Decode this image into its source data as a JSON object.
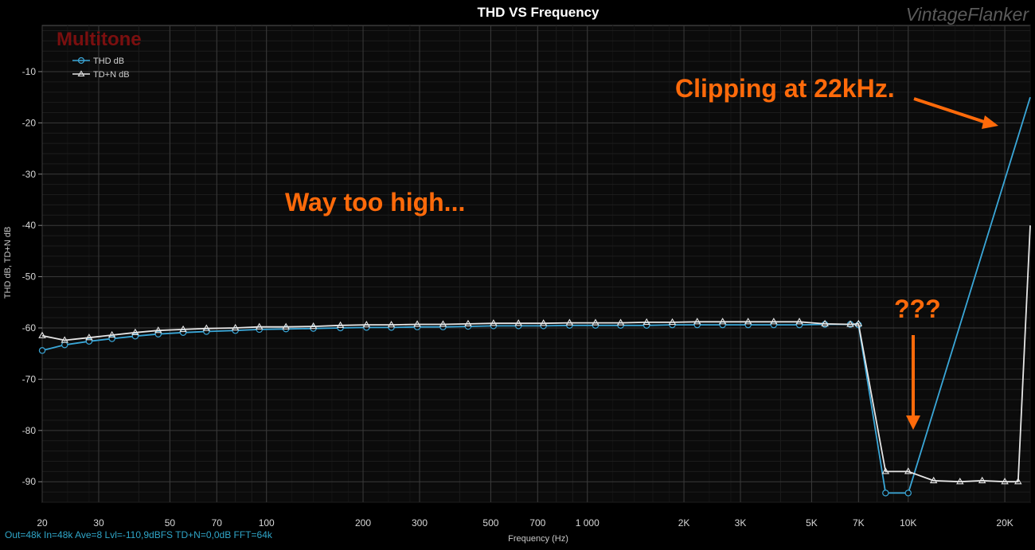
{
  "header": {
    "title": "THD VS Frequency",
    "brand": "VintageFlanker",
    "watermark": "Multitone"
  },
  "status_line": "Out=48k In=48k Ave=8 Lvl=-110,9dBFS TD+N=0,0dB FFT=64k",
  "colors": {
    "thd": "#3aa7d8",
    "tdn": "#e6e6e6",
    "annotation": "#ff6a0a",
    "grid_major": "#3a3a3a",
    "grid_minor": "#1c1c1c"
  },
  "annotations": [
    {
      "text": "Clipping at 22kHz."
    },
    {
      "text": "Way too high..."
    },
    {
      "text": "???"
    }
  ],
  "chart_data": {
    "type": "line",
    "title": "THD VS Frequency",
    "xlabel": "Frequency (Hz)",
    "ylabel": "THD dB, TD+N dB",
    "xscale": "log",
    "xlim": [
      20,
      24000
    ],
    "ylim": [
      -94,
      -1
    ],
    "grid": true,
    "legend_position": "top-left",
    "x_ticks": [
      {
        "value": 20,
        "label": "20"
      },
      {
        "value": 30,
        "label": "30"
      },
      {
        "value": 50,
        "label": "50"
      },
      {
        "value": 70,
        "label": "70"
      },
      {
        "value": 100,
        "label": "100"
      },
      {
        "value": 200,
        "label": "200"
      },
      {
        "value": 300,
        "label": "300"
      },
      {
        "value": 500,
        "label": "500"
      },
      {
        "value": 700,
        "label": "700"
      },
      {
        "value": 1000,
        "label": "1 000"
      },
      {
        "value": 2000,
        "label": "2K"
      },
      {
        "value": 3000,
        "label": "3K"
      },
      {
        "value": 5000,
        "label": "5K"
      },
      {
        "value": 7000,
        "label": "7K"
      },
      {
        "value": 10000,
        "label": "10K"
      },
      {
        "value": 20000,
        "label": "20K"
      }
    ],
    "y_ticks": [
      -10,
      -20,
      -30,
      -40,
      -50,
      -60,
      -70,
      -80,
      -90
    ],
    "series": [
      {
        "name": "THD dB",
        "marker": "circle",
        "points": [
          [
            20,
            -64.4
          ],
          [
            23.5,
            -63.3
          ],
          [
            28,
            -62.6
          ],
          [
            33,
            -62.1
          ],
          [
            39,
            -61.6
          ],
          [
            46,
            -61.2
          ],
          [
            55,
            -60.9
          ],
          [
            65,
            -60.7
          ],
          [
            80,
            -60.5
          ],
          [
            95,
            -60.3
          ],
          [
            115,
            -60.2
          ],
          [
            140,
            -60.1
          ],
          [
            170,
            -60.0
          ],
          [
            205,
            -59.9
          ],
          [
            245,
            -59.9
          ],
          [
            295,
            -59.8
          ],
          [
            355,
            -59.8
          ],
          [
            425,
            -59.7
          ],
          [
            510,
            -59.6
          ],
          [
            610,
            -59.6
          ],
          [
            730,
            -59.6
          ],
          [
            880,
            -59.5
          ],
          [
            1060,
            -59.5
          ],
          [
            1270,
            -59.5
          ],
          [
            1530,
            -59.5
          ],
          [
            1840,
            -59.4
          ],
          [
            2200,
            -59.4
          ],
          [
            2640,
            -59.4
          ],
          [
            3170,
            -59.4
          ],
          [
            3810,
            -59.4
          ],
          [
            4580,
            -59.4
          ],
          [
            5500,
            -59.3
          ],
          [
            6600,
            -59.3
          ],
          [
            7000,
            -59.4
          ],
          [
            8500,
            -92.2
          ],
          [
            10000,
            -92.2
          ],
          [
            24000,
            -15.0
          ]
        ]
      },
      {
        "name": "TD+N dB",
        "marker": "triangle",
        "points": [
          [
            20,
            -61.5
          ],
          [
            23.5,
            -62.4
          ],
          [
            28,
            -61.9
          ],
          [
            33,
            -61.4
          ],
          [
            39,
            -60.9
          ],
          [
            46,
            -60.5
          ],
          [
            55,
            -60.3
          ],
          [
            65,
            -60.1
          ],
          [
            80,
            -60.0
          ],
          [
            95,
            -59.8
          ],
          [
            115,
            -59.8
          ],
          [
            140,
            -59.7
          ],
          [
            170,
            -59.5
          ],
          [
            205,
            -59.4
          ],
          [
            245,
            -59.4
          ],
          [
            295,
            -59.3
          ],
          [
            355,
            -59.3
          ],
          [
            425,
            -59.2
          ],
          [
            510,
            -59.1
          ],
          [
            610,
            -59.1
          ],
          [
            730,
            -59.1
          ],
          [
            880,
            -59.0
          ],
          [
            1060,
            -59.0
          ],
          [
            1270,
            -59.0
          ],
          [
            1530,
            -58.9
          ],
          [
            1840,
            -58.9
          ],
          [
            2200,
            -58.8
          ],
          [
            2640,
            -58.8
          ],
          [
            3170,
            -58.8
          ],
          [
            3810,
            -58.8
          ],
          [
            4580,
            -58.8
          ],
          [
            5500,
            -59.2
          ],
          [
            6600,
            -59.3
          ],
          [
            7000,
            -59.2
          ],
          [
            8500,
            -88.0
          ],
          [
            10000,
            -88.0
          ],
          [
            12000,
            -89.8
          ],
          [
            14500,
            -90.0
          ],
          [
            17000,
            -89.8
          ],
          [
            20000,
            -90.0
          ],
          [
            22000,
            -90.0
          ],
          [
            24000,
            -40.0
          ]
        ]
      }
    ]
  }
}
